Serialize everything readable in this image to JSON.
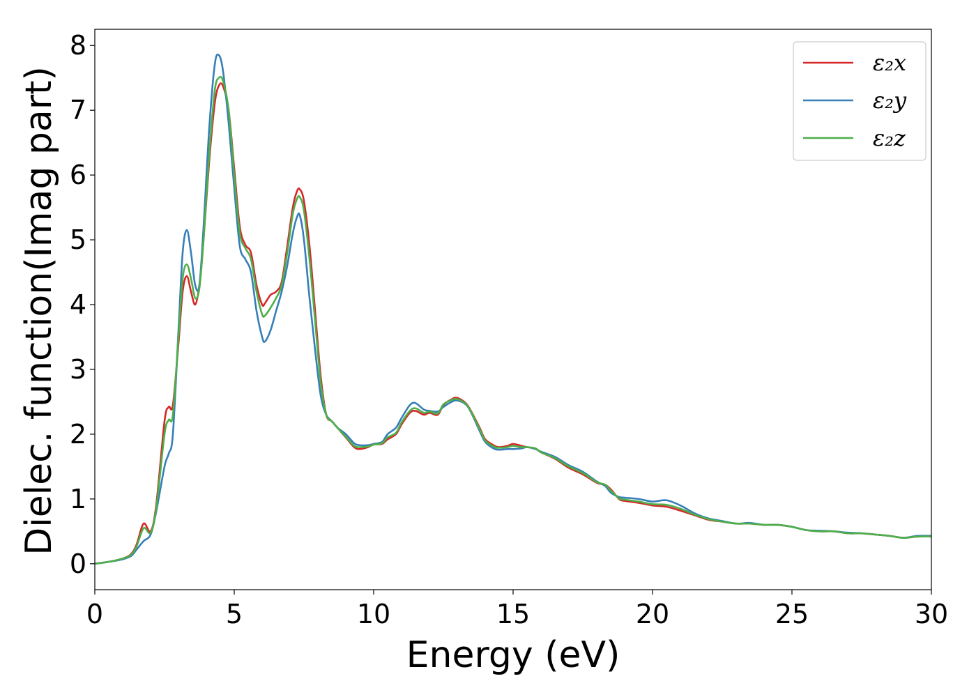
{
  "chart_data": {
    "type": "line",
    "title": "",
    "xlabel": "Energy (eV)",
    "ylabel": "Dielec. function(Imag part)",
    "xlim": [
      0,
      30
    ],
    "ylim": [
      -0.4,
      8.25
    ],
    "xticks": [
      0,
      5,
      10,
      15,
      20,
      25,
      30
    ],
    "yticks": [
      0,
      1,
      2,
      3,
      4,
      5,
      6,
      7,
      8
    ],
    "grid": false,
    "legend_position": "top-right",
    "series": [
      {
        "name": "ε₂x",
        "color": "#d62728",
        "x": [
          0,
          0.5,
          1.0,
          1.3,
          1.5,
          1.75,
          2.0,
          2.2,
          2.5,
          2.65,
          2.8,
          3.0,
          3.15,
          3.3,
          3.45,
          3.6,
          3.75,
          3.9,
          4.1,
          4.3,
          4.45,
          4.6,
          4.8,
          5.0,
          5.2,
          5.4,
          5.6,
          5.8,
          6.0,
          6.1,
          6.3,
          6.5,
          6.7,
          6.9,
          7.1,
          7.25,
          7.35,
          7.5,
          7.7,
          7.9,
          8.1,
          8.3,
          8.5,
          8.7,
          9.0,
          9.3,
          9.5,
          9.8,
          10.0,
          10.3,
          10.5,
          10.8,
          11.0,
          11.3,
          11.5,
          11.8,
          12.0,
          12.3,
          12.5,
          12.8,
          13.0,
          13.3,
          13.5,
          13.8,
          14.0,
          14.3,
          14.5,
          14.8,
          15.0,
          15.3,
          15.5,
          15.8,
          16.0,
          16.5,
          17.0,
          17.5,
          18.0,
          18.3,
          18.5,
          18.8,
          19.0,
          19.5,
          20.0,
          20.5,
          21.0,
          21.5,
          22.0,
          22.5,
          23.0,
          23.5,
          24.0,
          24.5,
          25.0,
          25.5,
          26.0,
          26.5,
          27.0,
          27.5,
          28.0,
          28.5,
          29.0,
          29.5,
          30.0
        ],
        "values": [
          0,
          0.03,
          0.08,
          0.15,
          0.3,
          0.62,
          0.5,
          0.9,
          2.2,
          2.42,
          2.45,
          3.4,
          4.2,
          4.44,
          4.2,
          4.0,
          4.3,
          5.0,
          6.2,
          7.1,
          7.38,
          7.37,
          7.0,
          6.1,
          5.2,
          4.92,
          4.8,
          4.3,
          4.0,
          4.02,
          4.15,
          4.2,
          4.35,
          4.9,
          5.5,
          5.75,
          5.78,
          5.6,
          4.9,
          3.9,
          2.9,
          2.3,
          2.2,
          2.1,
          1.95,
          1.8,
          1.77,
          1.8,
          1.84,
          1.85,
          1.92,
          2.0,
          2.15,
          2.33,
          2.36,
          2.3,
          2.33,
          2.3,
          2.45,
          2.54,
          2.56,
          2.48,
          2.35,
          2.1,
          1.92,
          1.83,
          1.8,
          1.82,
          1.85,
          1.82,
          1.8,
          1.78,
          1.72,
          1.62,
          1.48,
          1.38,
          1.25,
          1.22,
          1.15,
          1.0,
          0.97,
          0.94,
          0.9,
          0.88,
          0.82,
          0.75,
          0.68,
          0.65,
          0.62,
          0.62,
          0.6,
          0.6,
          0.57,
          0.52,
          0.5,
          0.5,
          0.47,
          0.47,
          0.45,
          0.43,
          0.4,
          0.42,
          0.42
        ]
      },
      {
        "name": "ε₂y",
        "color": "#377eb8",
        "x": [
          0,
          0.5,
          1.0,
          1.3,
          1.5,
          1.75,
          2.0,
          2.2,
          2.5,
          2.65,
          2.8,
          3.0,
          3.15,
          3.3,
          3.45,
          3.6,
          3.75,
          3.9,
          4.1,
          4.3,
          4.45,
          4.6,
          4.8,
          5.0,
          5.2,
          5.4,
          5.6,
          5.8,
          6.0,
          6.1,
          6.3,
          6.5,
          6.7,
          6.9,
          7.1,
          7.25,
          7.35,
          7.5,
          7.7,
          7.9,
          8.1,
          8.3,
          8.5,
          8.7,
          9.0,
          9.3,
          9.5,
          9.8,
          10.0,
          10.3,
          10.5,
          10.8,
          11.0,
          11.3,
          11.5,
          11.8,
          12.0,
          12.3,
          12.5,
          12.8,
          13.0,
          13.3,
          13.5,
          13.8,
          14.0,
          14.3,
          14.5,
          14.8,
          15.0,
          15.3,
          15.5,
          15.8,
          16.0,
          16.5,
          17.0,
          17.5,
          18.0,
          18.3,
          18.5,
          18.8,
          19.0,
          19.5,
          20.0,
          20.5,
          21.0,
          21.5,
          22.0,
          22.5,
          23.0,
          23.5,
          24.0,
          24.5,
          25.0,
          25.5,
          26.0,
          26.5,
          27.0,
          27.5,
          28.0,
          28.5,
          29.0,
          29.5,
          30.0
        ],
        "values": [
          0,
          0.03,
          0.07,
          0.12,
          0.22,
          0.35,
          0.45,
          0.8,
          1.5,
          1.7,
          2.0,
          3.6,
          4.8,
          5.15,
          4.8,
          4.3,
          4.3,
          5.2,
          6.7,
          7.7,
          7.85,
          7.6,
          6.8,
          5.8,
          4.9,
          4.7,
          4.5,
          3.9,
          3.5,
          3.43,
          3.6,
          3.9,
          4.2,
          4.6,
          5.1,
          5.35,
          5.38,
          5.0,
          4.1,
          3.3,
          2.6,
          2.3,
          2.2,
          2.1,
          2.0,
          1.86,
          1.83,
          1.83,
          1.85,
          1.88,
          2.0,
          2.1,
          2.25,
          2.45,
          2.48,
          2.38,
          2.36,
          2.35,
          2.42,
          2.5,
          2.52,
          2.46,
          2.33,
          2.05,
          1.88,
          1.78,
          1.76,
          1.77,
          1.77,
          1.78,
          1.8,
          1.77,
          1.73,
          1.65,
          1.52,
          1.42,
          1.27,
          1.2,
          1.1,
          1.03,
          1.02,
          1.0,
          0.96,
          0.98,
          0.9,
          0.78,
          0.7,
          0.66,
          0.62,
          0.63,
          0.6,
          0.6,
          0.57,
          0.52,
          0.51,
          0.5,
          0.48,
          0.47,
          0.45,
          0.43,
          0.4,
          0.43,
          0.43
        ]
      },
      {
        "name": "ε₂z",
        "color": "#4daf4a",
        "x": [
          0,
          0.5,
          1.0,
          1.3,
          1.5,
          1.75,
          2.0,
          2.2,
          2.5,
          2.65,
          2.8,
          3.0,
          3.15,
          3.3,
          3.45,
          3.6,
          3.75,
          3.9,
          4.1,
          4.3,
          4.45,
          4.6,
          4.8,
          5.0,
          5.2,
          5.4,
          5.6,
          5.8,
          6.0,
          6.1,
          6.3,
          6.5,
          6.7,
          6.9,
          7.1,
          7.25,
          7.35,
          7.5,
          7.7,
          7.9,
          8.1,
          8.3,
          8.5,
          8.7,
          9.0,
          9.3,
          9.5,
          9.8,
          10.0,
          10.3,
          10.5,
          10.8,
          11.0,
          11.3,
          11.5,
          11.8,
          12.0,
          12.3,
          12.5,
          12.8,
          13.0,
          13.3,
          13.5,
          13.8,
          14.0,
          14.3,
          14.5,
          14.8,
          15.0,
          15.3,
          15.5,
          15.8,
          16.0,
          16.5,
          17.0,
          17.5,
          18.0,
          18.3,
          18.5,
          18.8,
          19.0,
          19.5,
          20.0,
          20.5,
          21.0,
          21.5,
          22.0,
          22.5,
          23.0,
          23.5,
          24.0,
          24.5,
          25.0,
          25.5,
          26.0,
          26.5,
          27.0,
          27.5,
          28.0,
          28.5,
          29.0,
          29.5,
          30.0
        ],
        "values": [
          0,
          0.03,
          0.08,
          0.14,
          0.27,
          0.55,
          0.48,
          0.85,
          2.0,
          2.22,
          2.3,
          3.5,
          4.4,
          4.62,
          4.4,
          4.1,
          4.25,
          5.0,
          6.3,
          7.3,
          7.5,
          7.45,
          7.0,
          6.0,
          5.1,
          4.87,
          4.7,
          4.2,
          3.85,
          3.83,
          3.95,
          4.1,
          4.3,
          4.8,
          5.4,
          5.63,
          5.66,
          5.45,
          4.7,
          3.75,
          2.8,
          2.3,
          2.2,
          2.1,
          1.96,
          1.82,
          1.8,
          1.81,
          1.84,
          1.86,
          1.95,
          2.02,
          2.18,
          2.36,
          2.4,
          2.33,
          2.35,
          2.32,
          2.46,
          2.53,
          2.54,
          2.47,
          2.34,
          2.08,
          1.9,
          1.81,
          1.79,
          1.8,
          1.82,
          1.8,
          1.8,
          1.78,
          1.72,
          1.63,
          1.5,
          1.4,
          1.26,
          1.22,
          1.13,
          1.01,
          0.99,
          0.96,
          0.92,
          0.91,
          0.85,
          0.76,
          0.69,
          0.65,
          0.62,
          0.62,
          0.6,
          0.6,
          0.57,
          0.52,
          0.5,
          0.5,
          0.47,
          0.47,
          0.45,
          0.43,
          0.4,
          0.42,
          0.42
        ]
      }
    ]
  }
}
